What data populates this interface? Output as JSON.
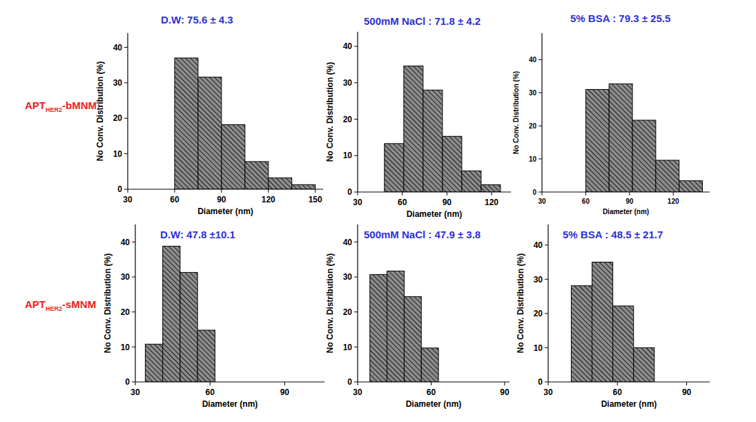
{
  "row_labels": [
    {
      "text": "APT",
      "subscript": "HER2",
      "suffix": "-bMNM"
    },
    {
      "text": "APT",
      "subscript": "HER2",
      "suffix": "-sMNM"
    }
  ],
  "chart_data": [
    {
      "type": "histogram",
      "title": "D.W: 75.6 ± 4.3",
      "x_label": "Diameter (nm)",
      "y_label": "No Conv. Distribution (%)",
      "bins": [
        60,
        75,
        90,
        105,
        120,
        135,
        150
      ],
      "counts": [
        37,
        31.6,
        18.2,
        7.8,
        3.2,
        1.3
      ],
      "color": "#8c8c8c",
      "xlim": [
        30,
        155
      ],
      "xticks": [
        30,
        60,
        90,
        120,
        150
      ],
      "ylim": [
        0,
        44
      ],
      "yticks": [
        0,
        10,
        20,
        30,
        40
      ]
    },
    {
      "type": "histogram",
      "title": "500mM NaCl : 71.8 ± 4.2",
      "x_label": "Diameter (nm)",
      "y_label": "No Conv. Distribution (%)",
      "bins": [
        48,
        61,
        74,
        87,
        100,
        113,
        126
      ],
      "counts": [
        13.3,
        34.6,
        28,
        15.3,
        5.8,
        2
      ],
      "color": "#8c8c8c",
      "xlim": [
        30,
        133
      ],
      "xticks": [
        30,
        60,
        90,
        120
      ],
      "ylim": [
        0,
        44
      ],
      "yticks": [
        0,
        10,
        20,
        30,
        40
      ]
    },
    {
      "type": "histogram",
      "title": "5% BSA : 79.3 ± 25.5",
      "x_label": "Diameter (nm)",
      "y_label": "No Conv. Distribution (%)",
      "bins": [
        60,
        76,
        92,
        108,
        124,
        140
      ],
      "counts": [
        31,
        32.7,
        21.7,
        9.6,
        3.4
      ],
      "color": "#8c8c8c",
      "xlim": [
        30,
        145
      ],
      "xticks": [
        30,
        60,
        90,
        120
      ],
      "ylim": [
        0,
        48
      ],
      "yticks": [
        0,
        10,
        20,
        30,
        40
      ]
    },
    {
      "type": "histogram",
      "title": "D.W: 47.8 ±10.1",
      "x_label": "Diameter (nm)",
      "y_label": "No Conv. Distribution (%)",
      "bins": [
        34,
        41,
        48,
        55,
        62
      ],
      "counts": [
        10.8,
        38.8,
        31.3,
        14.8
      ],
      "color": "#8c8c8c",
      "xlim": [
        30,
        106
      ],
      "xticks": [
        30,
        60,
        90
      ],
      "ylim": [
        0,
        45
      ],
      "yticks": [
        0,
        10,
        20,
        30,
        40
      ]
    },
    {
      "type": "histogram",
      "title": "500mM NaCl : 47.9 ± 3.8",
      "x_label": "Diameter (nm)",
      "y_label": "No Conv. Distribution (%)",
      "bins": [
        35,
        42,
        49,
        56,
        63
      ],
      "counts": [
        30.7,
        31.7,
        24.4,
        9.7
      ],
      "color": "#8c8c8c",
      "xlim": [
        30,
        92
      ],
      "xticks": [
        30,
        60,
        90
      ],
      "ylim": [
        0,
        45
      ],
      "yticks": [
        0,
        10,
        20,
        30,
        40
      ]
    },
    {
      "type": "histogram",
      "title": "5% BSA : 48.5 ± 21.7",
      "x_label": "Diameter (nm)",
      "y_label": "No Conv. Distribution (%)",
      "bins": [
        40,
        49,
        58,
        67,
        76
      ],
      "counts": [
        28.1,
        35,
        22.2,
        10
      ],
      "color": "#8c8c8c",
      "xlim": [
        30,
        100
      ],
      "xticks": [
        30,
        60,
        90
      ],
      "ylim": [
        0,
        46
      ],
      "yticks": [
        0,
        10,
        20,
        30,
        40
      ]
    }
  ]
}
